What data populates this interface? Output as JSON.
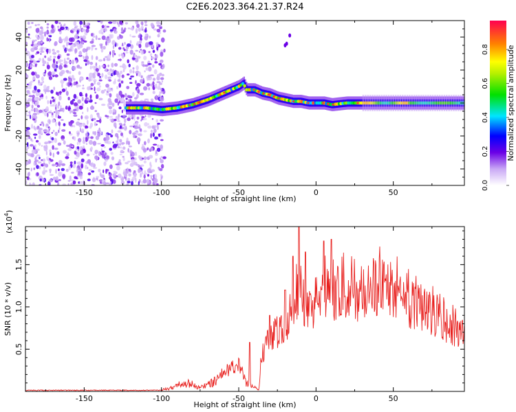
{
  "title": "C2E6.2023.364.21.37.R24",
  "chart_data": [
    {
      "type": "heatmap",
      "xlabel": "Height of straight line (km)",
      "ylabel": "Frequency (Hz)",
      "xlim": [
        -188,
        96
      ],
      "ylim": [
        -50,
        50
      ],
      "x_ticks": [
        -150,
        -100,
        -50,
        0,
        50
      ],
      "y_ticks": [
        -40,
        -20,
        0,
        20,
        40
      ],
      "colorbar": {
        "label": "Normalized spectral amplitude",
        "range": [
          0,
          0.97
        ],
        "ticks": [
          0.0,
          0.2,
          0.4,
          0.6,
          0.8
        ],
        "colormap": "rainbow"
      },
      "ridge": {
        "x": [
          -123,
          -110,
          -100,
          -90,
          -80,
          -70,
          -60,
          -55,
          -50,
          -47,
          -45,
          -40,
          -35,
          -30,
          -25,
          -20,
          -15,
          -10,
          -5,
          0,
          5,
          10,
          20,
          30,
          40,
          50,
          60,
          70,
          80,
          96
        ],
        "y": [
          -3,
          -3,
          -4,
          -3,
          -1,
          2,
          6,
          8,
          10,
          12,
          8,
          8,
          6,
          5,
          3,
          2,
          1,
          1,
          0,
          0,
          0,
          -1,
          0,
          0,
          0,
          0,
          0,
          0,
          0,
          0
        ]
      },
      "noise_region": {
        "x_range": [
          -188,
          -98
        ],
        "amplitude_range": [
          0.02,
          0.3
        ]
      }
    },
    {
      "type": "line",
      "xlabel": "Height of straight line (km)",
      "ylabel": "SNR (10 * v/v)",
      "y_scale_label": "(x10",
      "y_scale_exp": "4",
      "y_scale_close": ")",
      "xlim": [
        -188,
        96
      ],
      "ylim": [
        0,
        1.95
      ],
      "x_ticks": [
        -150,
        -100,
        -50,
        0,
        50
      ],
      "y_ticks": [
        0.5,
        1.0,
        1.5
      ],
      "color": "#e8201e",
      "envelope": {
        "x": [
          -188,
          -100,
          -95,
          -90,
          -85,
          -80,
          -75,
          -70,
          -65,
          -60,
          -55,
          -50,
          -45,
          -40,
          -37,
          -35,
          -30,
          -25,
          -20,
          -15,
          -10,
          -5,
          0,
          5,
          10,
          15,
          20,
          25,
          30,
          35,
          40,
          45,
          50,
          55,
          60,
          65,
          70,
          75,
          80,
          85,
          90,
          96
        ],
        "y": [
          0.01,
          0.03,
          0.05,
          0.1,
          0.14,
          0.12,
          0.06,
          0.12,
          0.18,
          0.28,
          0.35,
          0.4,
          0.14,
          0.08,
          0.05,
          0.55,
          0.8,
          0.9,
          1.0,
          1.3,
          1.55,
          1.2,
          1.35,
          1.45,
          1.45,
          1.55,
          1.45,
          1.45,
          1.55,
          1.6,
          1.6,
          1.55,
          1.5,
          1.4,
          1.35,
          1.3,
          1.25,
          1.2,
          1.1,
          1.0,
          0.9,
          1.0
        ]
      },
      "spikes": [
        {
          "x": -43,
          "y": 0.58
        },
        {
          "x": -30,
          "y": 0.9
        },
        {
          "x": -20,
          "y": 1.2
        },
        {
          "x": -15,
          "y": 1.6
        },
        {
          "x": -11,
          "y": 1.95
        },
        {
          "x": -7,
          "y": 1.65
        },
        {
          "x": 5,
          "y": 1.78
        },
        {
          "x": 10,
          "y": 1.8
        }
      ]
    }
  ]
}
